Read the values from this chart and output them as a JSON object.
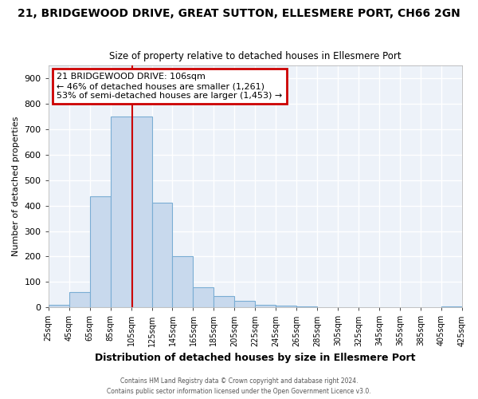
{
  "title": "21, BRIDGEWOOD DRIVE, GREAT SUTTON, ELLESMERE PORT, CH66 2GN",
  "subtitle": "Size of property relative to detached houses in Ellesmere Port",
  "xlabel": "Distribution of detached houses by size in Ellesmere Port",
  "ylabel": "Number of detached properties",
  "bar_color": "#c8d9ed",
  "bar_edge_color": "#7aadd4",
  "vline_color": "#cc0000",
  "plot_bg_color": "#edf2f9",
  "fig_bg_color": "#ffffff",
  "grid_color": "#ffffff",
  "bin_edges": [
    25,
    45,
    65,
    85,
    105,
    125,
    145,
    165,
    185,
    205,
    225,
    245,
    265,
    285,
    305,
    325,
    345,
    365,
    385,
    405,
    425
  ],
  "bin_values": [
    10,
    60,
    435,
    750,
    750,
    410,
    200,
    78,
    44,
    25,
    10,
    8,
    5,
    0,
    0,
    0,
    0,
    0,
    0,
    5
  ],
  "vline_x": 106,
  "ylim": [
    0,
    950
  ],
  "yticks": [
    0,
    100,
    200,
    300,
    400,
    500,
    600,
    700,
    800,
    900
  ],
  "annotation_title": "21 BRIDGEWOOD DRIVE: 106sqm",
  "annotation_line1": "← 46% of detached houses are smaller (1,261)",
  "annotation_line2": "53% of semi-detached houses are larger (1,453) →",
  "annotation_box_color": "#ffffff",
  "annotation_box_edge": "#cc0000",
  "footer1": "Contains HM Land Registry data © Crown copyright and database right 2024.",
  "footer2": "Contains public sector information licensed under the Open Government Licence v3.0."
}
